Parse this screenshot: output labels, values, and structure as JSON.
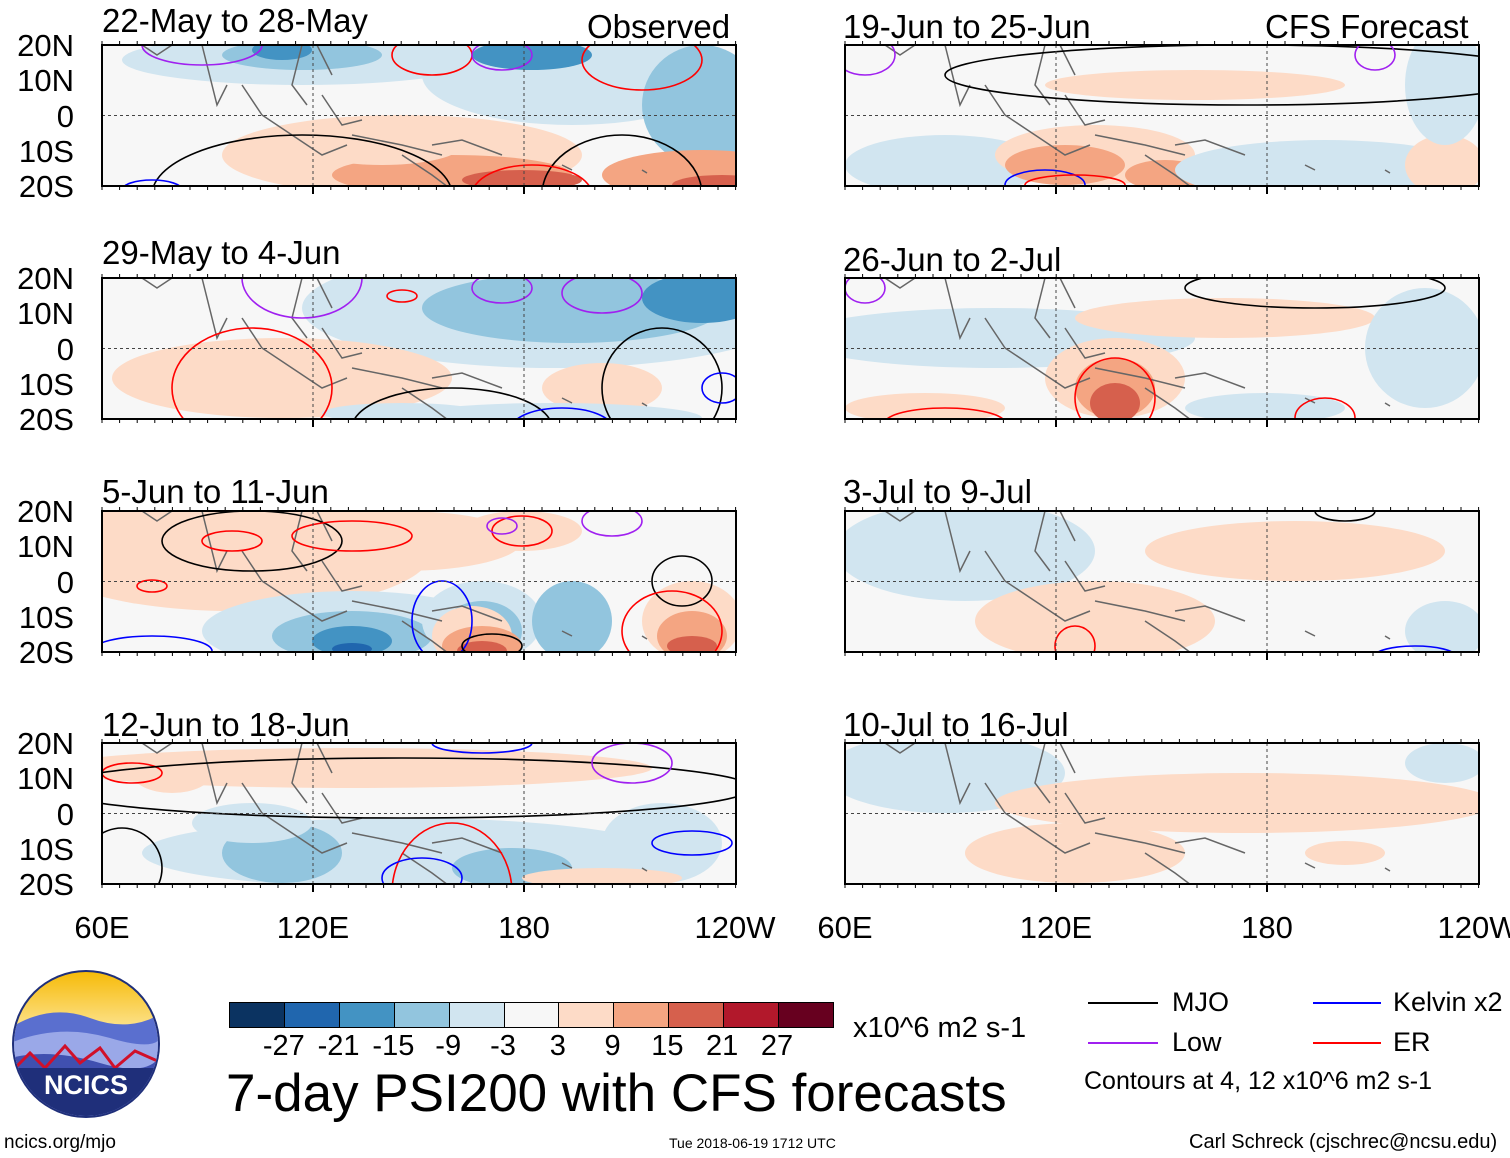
{
  "left_column": {
    "header_right": "Observed",
    "panels": [
      {
        "title": "22-May to 28-May"
      },
      {
        "title": "29-May to 4-Jun"
      },
      {
        "title": "5-Jun to 11-Jun"
      },
      {
        "title": "12-Jun to 18-Jun"
      }
    ]
  },
  "right_column": {
    "header_right": "CFS Forecast",
    "panels": [
      {
        "title": "19-Jun to 25-Jun"
      },
      {
        "title": "26-Jun to 2-Jul"
      },
      {
        "title": "3-Jul to 9-Jul"
      },
      {
        "title": "10-Jul to 16-Jul"
      }
    ]
  },
  "y_axis_labels": [
    "20N",
    "10N",
    "0",
    "10S",
    "20S"
  ],
  "x_axis_labels": [
    "60E",
    "120E",
    "180",
    "120W"
  ],
  "colorbar": {
    "colors": [
      "#0b3361",
      "#2066ae",
      "#4393c3",
      "#92c5de",
      "#d1e5f0",
      "#f7f7f7",
      "#fddbc7",
      "#f4a582",
      "#d6604d",
      "#b2182b",
      "#67001f"
    ],
    "labels": [
      "-27",
      "-21",
      "-15",
      "-9",
      "-3",
      "3",
      "9",
      "15",
      "21",
      "27"
    ],
    "units": "x10^6 m2 s-1"
  },
  "title": "7-day PSI200 with CFS forecasts",
  "timestamp": "Tue 2018-06-19 1712 UTC",
  "legend": {
    "items": [
      {
        "label": "MJO",
        "color": "#000000"
      },
      {
        "label": "Kelvin x2",
        "color": "#0000ff"
      },
      {
        "label": "Low",
        "color": "#a020f0"
      },
      {
        "label": "ER",
        "color": "#ff0000"
      }
    ],
    "contours_note": "Contours at 4, 12 x10^6 m2 s-1"
  },
  "logo": {
    "text": "NCICS"
  },
  "footer": {
    "url": "ncics.org/mjo",
    "credit": "Carl Schreck (cjschrec@ncsu.edu)"
  }
}
